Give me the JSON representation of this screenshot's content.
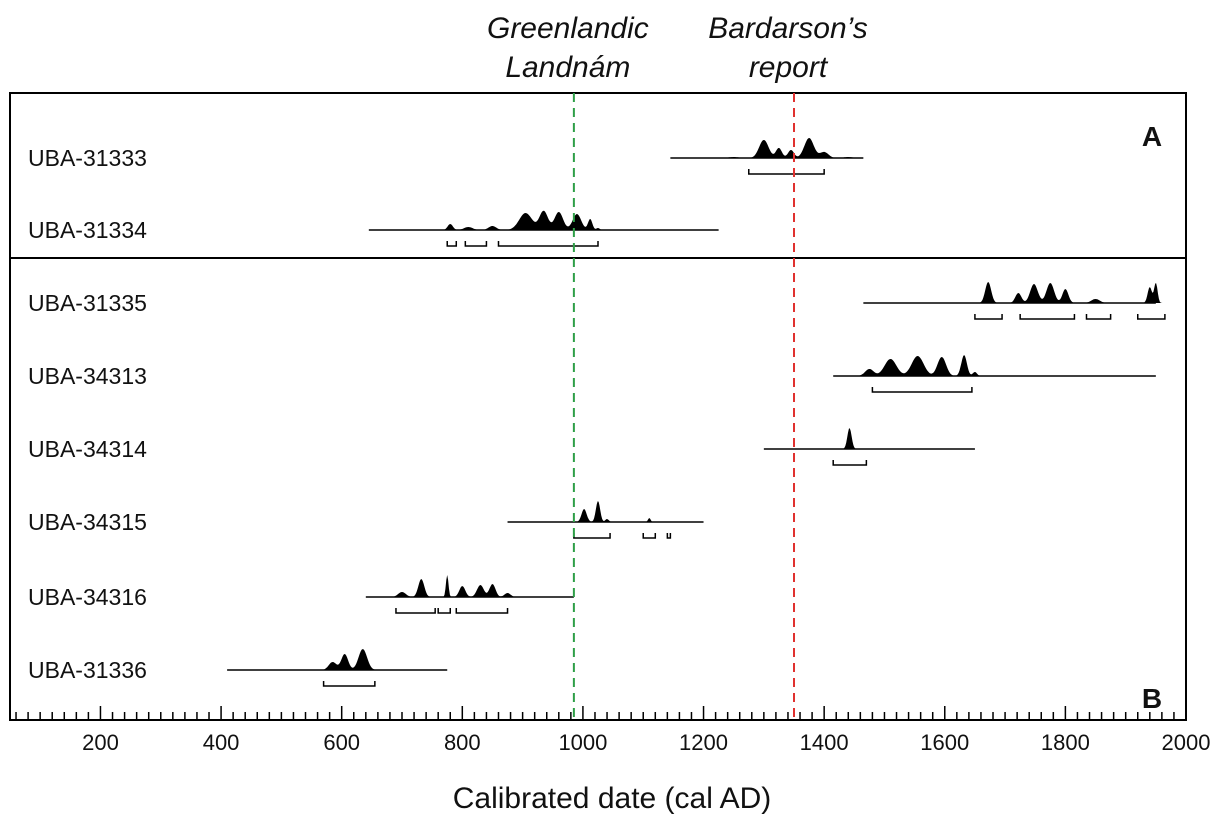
{
  "chart_data": {
    "type": "calibrated-radiocarbon-probability-plot",
    "xlabel": "Calibrated date (cal AD)",
    "xlim": [
      50,
      2000
    ],
    "xticks": [
      200,
      400,
      600,
      800,
      1000,
      1200,
      1400,
      1600,
      1800,
      2000
    ],
    "minor_tick_step": 20,
    "colors": {
      "density": "#000000",
      "landnam_line": "#2e9e47",
      "bardarson_line": "#e0312f",
      "frame": "#000000"
    },
    "reference_lines": [
      {
        "key": "landnam",
        "label_lines": [
          "Greenlandic",
          "Landnám"
        ],
        "x": 985,
        "color": "#2e9e47"
      },
      {
        "key": "bardarson",
        "label_lines": [
          "Bardarson’s",
          "report"
        ],
        "x": 1350,
        "color": "#e0312f"
      }
    ],
    "panels": [
      {
        "label": "A",
        "label_position": "top-right",
        "samples": [
          {
            "name": "UBA-31333",
            "line": [
              1145,
              1465
            ],
            "peaks": [
              [
                1250,
                1,
                22
              ],
              [
                1300,
                18,
                22
              ],
              [
                1325,
                10,
                14
              ],
              [
                1345,
                8,
                14
              ],
              [
                1375,
                20,
                22
              ],
              [
                1400,
                6,
                20
              ],
              [
                1440,
                1,
                20
              ]
            ],
            "ranges": [
              [
                1275,
                1400
              ]
            ]
          },
          {
            "name": "UBA-31334",
            "line": [
              645,
              1225
            ],
            "peaks": [
              [
                780,
                6,
                12
              ],
              [
                810,
                3,
                20
              ],
              [
                850,
                4,
                18
              ],
              [
                905,
                17,
                30
              ],
              [
                935,
                19,
                20
              ],
              [
                960,
                18,
                20
              ],
              [
                990,
                16,
                20
              ],
              [
                1012,
                11,
                10
              ],
              [
                1025,
                2,
                8
              ]
            ],
            "ranges": [
              [
                775,
                790
              ],
              [
                805,
                840
              ],
              [
                860,
                1025
              ]
            ]
          }
        ]
      },
      {
        "label": "B",
        "label_position": "bottom-right",
        "samples": [
          {
            "name": "UBA-31335",
            "line": [
              1465,
              1950
            ],
            "peaks": [
              [
                1672,
                21,
                14
              ],
              [
                1722,
                10,
                14
              ],
              [
                1748,
                19,
                18
              ],
              [
                1775,
                20,
                18
              ],
              [
                1800,
                14,
                14
              ],
              [
                1850,
                4,
                20
              ],
              [
                1940,
                16,
                10
              ],
              [
                1950,
                20,
                8
              ]
            ],
            "ranges": [
              [
                1650,
                1695
              ],
              [
                1725,
                1815
              ],
              [
                1835,
                1875
              ],
              [
                1920,
                1965
              ]
            ]
          },
          {
            "name": "UBA-34313",
            "line": [
              1415,
              1950
            ],
            "peaks": [
              [
                1475,
                7,
                20
              ],
              [
                1510,
                17,
                28
              ],
              [
                1555,
                20,
                28
              ],
              [
                1595,
                19,
                20
              ],
              [
                1632,
                21,
                13
              ],
              [
                1650,
                4,
                10
              ]
            ],
            "ranges": [
              [
                1480,
                1645
              ]
            ]
          },
          {
            "name": "UBA-34314",
            "line": [
              1300,
              1650
            ],
            "peaks": [
              [
                1442,
                21,
                10
              ]
            ],
            "ranges": [
              [
                1415,
                1470
              ]
            ]
          },
          {
            "name": "UBA-34315",
            "line": [
              875,
              1200
            ],
            "peaks": [
              [
                1002,
                13,
                12
              ],
              [
                1025,
                21,
                10
              ],
              [
                1040,
                3,
                8
              ],
              [
                1110,
                4,
                6
              ]
            ],
            "ranges": [
              [
                985,
                1045
              ],
              [
                1100,
                1120
              ],
              [
                1140,
                1145
              ]
            ]
          },
          {
            "name": "UBA-34316",
            "line": [
              640,
              985
            ],
            "peaks": [
              [
                700,
                5,
                18
              ],
              [
                732,
                18,
                14
              ],
              [
                775,
                22,
                6
              ],
              [
                800,
                11,
                14
              ],
              [
                830,
                12,
                16
              ],
              [
                850,
                13,
                14
              ],
              [
                875,
                4,
                14
              ]
            ],
            "ranges": [
              [
                690,
                755
              ],
              [
                760,
                780
              ],
              [
                790,
                875
              ]
            ]
          },
          {
            "name": "UBA-31336",
            "line": [
              410,
              775
            ],
            "peaks": [
              [
                585,
                8,
                18
              ],
              [
                605,
                16,
                16
              ],
              [
                635,
                21,
                20
              ]
            ],
            "ranges": [
              [
                570,
                655
              ]
            ]
          }
        ]
      }
    ]
  }
}
